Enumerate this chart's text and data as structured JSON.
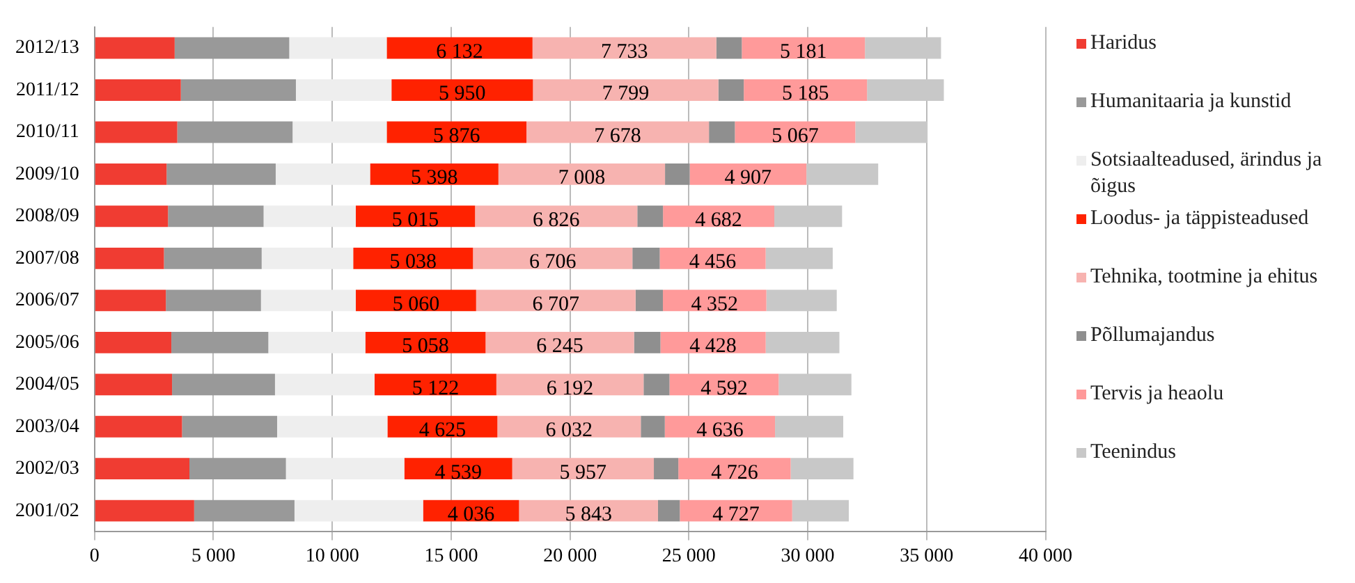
{
  "chart_data": {
    "type": "bar",
    "orientation": "horizontal",
    "stacked": true,
    "categories": [
      "2012/13",
      "2011/12",
      "2010/11",
      "2009/10",
      "2008/09",
      "2007/08",
      "2006/07",
      "2005/06",
      "2004/05",
      "2003/04",
      "2002/03",
      "2001/02"
    ],
    "series": [
      {
        "name": "Haridus",
        "color": "#f03c32",
        "values": [
          3370,
          3630,
          3480,
          3030,
          3090,
          2920,
          3000,
          3230,
          3260,
          3680,
          3990,
          4190
        ]
      },
      {
        "name": "Humanitaaria ja kunstid",
        "color": "#999999",
        "values": [
          4820,
          4840,
          4850,
          4590,
          4020,
          4110,
          4000,
          4080,
          4330,
          4000,
          4060,
          4220
        ]
      },
      {
        "name": "Sotsiaalteadused, ärindus ja õigus",
        "color": "#eeeeee",
        "values": [
          4100,
          4020,
          3960,
          3970,
          3880,
          3850,
          3990,
          4080,
          4190,
          4640,
          4980,
          5410
        ]
      },
      {
        "name": "Loodus- ja täppisteadused",
        "color": "#ff2200",
        "values": [
          6132,
          5950,
          5876,
          5398,
          5015,
          5038,
          5060,
          5058,
          5122,
          4625,
          4539,
          4036
        ],
        "value_labels": [
          "6 132",
          "5 950",
          "5 876",
          "5 398",
          "5 015",
          "5 038",
          "5 060",
          "5 058",
          "5 122",
          "4 625",
          "4 539",
          "4 036"
        ]
      },
      {
        "name": "Tehnika, tootmine ja ehitus",
        "color": "#f7b3b0",
        "values": [
          7733,
          7799,
          7678,
          7008,
          6826,
          6706,
          6707,
          6245,
          6192,
          6032,
          5957,
          5843
        ],
        "value_labels": [
          "7 733",
          "7 799",
          "7 678",
          "7 008",
          "6 826",
          "6 706",
          "6 707",
          "6 245",
          "6 192",
          "6 032",
          "5 957",
          "5 843"
        ]
      },
      {
        "name": "Põllumajandus",
        "color": "#8f8f8f",
        "values": [
          1070,
          1070,
          1090,
          1040,
          1080,
          1150,
          1150,
          1110,
          1090,
          1010,
          1030,
          920
        ]
      },
      {
        "name": "Tervis ja heaolu",
        "color": "#ff9a9a",
        "values": [
          5181,
          5185,
          5067,
          4907,
          4682,
          4456,
          4352,
          4428,
          4592,
          4636,
          4726,
          4727
        ],
        "value_labels": [
          "5 181",
          "5 185",
          "5 067",
          "4 907",
          "4 682",
          "4 456",
          "4 352",
          "4 428",
          "4 592",
          "4 636",
          "4 726",
          "4 727"
        ]
      },
      {
        "name": "Teenindus",
        "color": "#c8c8c8",
        "values": [
          3200,
          3230,
          3040,
          3020,
          2850,
          2820,
          2960,
          3100,
          3060,
          2870,
          2640,
          2380
        ]
      }
    ],
    "xlim": [
      0,
      40000
    ],
    "xticks": [
      0,
      {
        "value": 5000,
        "label": "5 000"
      },
      {
        "value": 10000,
        "label": "10 000"
      },
      {
        "value": 15000,
        "label": "15 000"
      },
      {
        "value": 20000,
        "label": "20 000"
      },
      {
        "value": 25000,
        "label": "25 000"
      },
      {
        "value": 30000,
        "label": "30 000"
      },
      {
        "value": 35000,
        "label": "35 000"
      },
      {
        "value": 40000,
        "label": "40 000"
      }
    ],
    "grid": "x",
    "legend": "right"
  }
}
